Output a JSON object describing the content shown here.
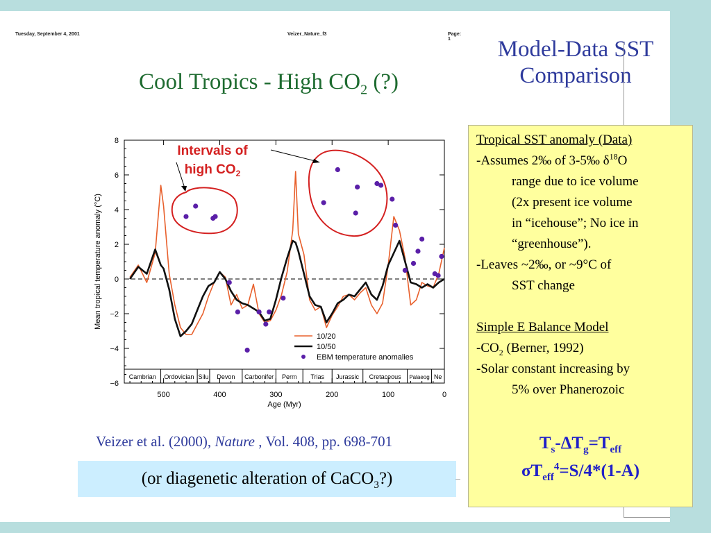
{
  "header": {
    "date": "Tuesday, September 4, 2001",
    "file": "Veizer_Nature_f3",
    "page": "Page: 1"
  },
  "figure_title": {
    "main": "Cool Tropics - High CO",
    "sub": "2",
    "end": " (?)"
  },
  "slide_title": {
    "line1": "Model-Data SST",
    "line2": "Comparison"
  },
  "info_box": {
    "section1_heading": "Tropical SST anomaly (Data)",
    "assume_a": "-Assumes 2‰ of 3-5‰ δ",
    "assume_sup": "18",
    "assume_b": "O",
    "assume_l2": "range due to ice volume",
    "assume_l3": "(2x present ice volume",
    "assume_l4": "in “icehouse”; No ice in",
    "assume_l5": "“greenhouse”).",
    "leaves_l1": "-Leaves ~2‰, or ~9°C of",
    "leaves_l2": "SST change",
    "section2_heading": "Simple E Balance Model",
    "co2_a": "-CO",
    "co2_sub": "2",
    "co2_b": " (Berner, 1992)",
    "solar_l1": "-Solar constant increasing by",
    "solar_l2": "5% over Phanerozoic",
    "eq1": {
      "a": "T",
      "a_sub": "s",
      "b": "-ΔT",
      "b_sub": "g",
      "c": "=T",
      "c_sub": "eff"
    },
    "eq2": {
      "a": "σT",
      "a_sub": "eff",
      "a_sup": "4",
      "b": "=S/4*(1-A)"
    }
  },
  "citation": {
    "a": "Veizer et al. (2000), ",
    "journal": "Nature",
    "b": " , Vol. 408, pp. 698-701"
  },
  "caco_box": {
    "a": "(or diagenetic alteration of CaCO",
    "sub": "3",
    "b": "?)"
  },
  "colors": {
    "series_1020": "#e8602c",
    "series_1050": "#111111",
    "dots": "#5a1fa8",
    "annotation": "#d42020"
  },
  "chart_data": {
    "type": "line",
    "xlabel": "Age (Myr)",
    "ylabel": "Mean tropical temperature anomaly (°C)",
    "xlim": [
      570,
      0
    ],
    "ylim": [
      -6,
      8
    ],
    "x_ticks": [
      500,
      400,
      300,
      200,
      100,
      0
    ],
    "y_ticks": [
      8,
      6,
      4,
      2,
      0,
      -2,
      -4,
      -6
    ],
    "periods": [
      "Cambrian",
      "Ordovician",
      "Silu",
      "Devon",
      "Carbonifer",
      "Perm",
      "Trias",
      "Jurassic",
      "Cretaceous",
      "Palaeog",
      "Ne"
    ],
    "annotation": {
      "line1": "Intervals of",
      "line2a": "high CO",
      "line2_sub": "2"
    },
    "series": [
      {
        "name": "10/20",
        "x": [
          560,
          545,
          530,
          515,
          505,
          500,
          490,
          480,
          470,
          460,
          450,
          440,
          430,
          420,
          410,
          400,
          390,
          380,
          370,
          360,
          350,
          340,
          330,
          320,
          310,
          300,
          290,
          280,
          270,
          265,
          260,
          250,
          240,
          230,
          220,
          210,
          200,
          190,
          180,
          170,
          160,
          150,
          140,
          130,
          120,
          110,
          100,
          90,
          80,
          70,
          60,
          50,
          40,
          30,
          20,
          10,
          0
        ],
        "y": [
          0.1,
          0.8,
          -0.2,
          1.5,
          5.4,
          4.2,
          0.3,
          -1.5,
          -2.8,
          -3.2,
          -3.2,
          -2.6,
          -2.0,
          -1.0,
          -0.2,
          0.4,
          0.1,
          -1.5,
          -0.9,
          -1.7,
          -1.5,
          -0.3,
          -2.0,
          -2.5,
          -2.4,
          -1.8,
          -0.9,
          0.4,
          2.8,
          6.2,
          2.6,
          1.4,
          -1.2,
          -1.8,
          -1.6,
          -2.8,
          -2.1,
          -1.6,
          -1.0,
          -0.9,
          -1.2,
          -0.8,
          -0.5,
          -1.5,
          -2.0,
          -1.4,
          0.8,
          3.6,
          2.8,
          1.2,
          -1.5,
          -1.2,
          -0.2,
          -0.4,
          -0.5,
          0.3,
          1.8
        ]
      },
      {
        "name": "10/50",
        "x": [
          560,
          545,
          530,
          515,
          505,
          500,
          490,
          480,
          470,
          460,
          450,
          440,
          430,
          420,
          410,
          400,
          390,
          380,
          370,
          360,
          350,
          340,
          330,
          320,
          310,
          300,
          290,
          280,
          270,
          265,
          260,
          250,
          240,
          230,
          220,
          210,
          200,
          190,
          180,
          170,
          160,
          150,
          140,
          130,
          120,
          110,
          100,
          90,
          80,
          70,
          60,
          50,
          40,
          30,
          20,
          10,
          0
        ],
        "y": [
          0.0,
          0.7,
          0.3,
          1.7,
          0.8,
          0.6,
          -0.6,
          -2.3,
          -3.3,
          -3.0,
          -2.6,
          -1.8,
          -1.0,
          -0.4,
          -0.2,
          0.4,
          0.0,
          -0.7,
          -1.2,
          -1.4,
          -1.5,
          -1.7,
          -1.9,
          -2.4,
          -2.3,
          -1.2,
          0.1,
          1.2,
          2.2,
          2.1,
          1.6,
          0.3,
          -1.0,
          -1.5,
          -1.6,
          -2.5,
          -2.0,
          -1.4,
          -1.2,
          -0.9,
          -1.0,
          -0.6,
          -0.2,
          -0.9,
          -1.2,
          -0.4,
          0.8,
          1.5,
          2.2,
          1.0,
          -0.2,
          -0.3,
          -0.5,
          -0.3,
          -0.5,
          -0.2,
          0.0
        ]
      }
    ],
    "points": {
      "name": "EBM temperature anomalies",
      "x": [
        460,
        443,
        412,
        408,
        383,
        368,
        351,
        330,
        318,
        312,
        287,
        215,
        190,
        158,
        155,
        120,
        113,
        93,
        87,
        70,
        55,
        47,
        40,
        17,
        11,
        5
      ],
      "y": [
        3.6,
        4.2,
        3.5,
        3.6,
        -0.2,
        -1.9,
        -4.1,
        -1.9,
        -2.6,
        -1.9,
        -1.1,
        4.4,
        6.3,
        3.8,
        5.3,
        5.5,
        5.4,
        4.6,
        3.1,
        0.5,
        0.9,
        1.6,
        2.3,
        0.3,
        0.2,
        1.3
      ]
    }
  }
}
